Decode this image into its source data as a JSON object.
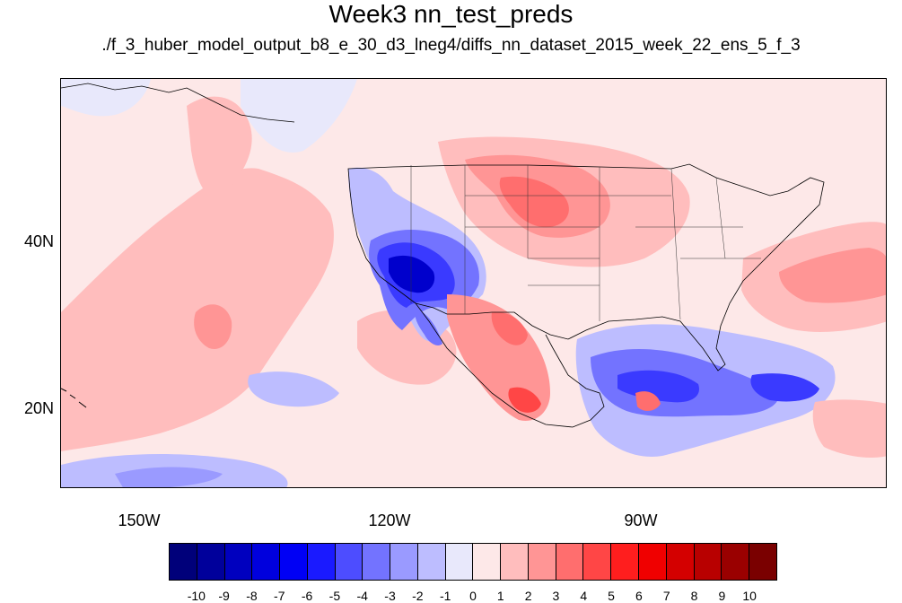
{
  "title": "Week3 nn_test_preds",
  "subtitle": "./f_3_huber_model_output_b8_e_30_d3_lneg4/diffs_nn_dataset_2015_week_22_ens_5_f_3",
  "lon_labels": [
    "150W",
    "120W",
    "90W"
  ],
  "lat_labels": [
    "40N",
    "20N"
  ],
  "colorbar": {
    "labels": [
      "-10",
      "-9",
      "-8",
      "-7",
      "-6",
      "-5",
      "-4",
      "-3",
      "-2",
      "-1",
      "0",
      "1",
      "2",
      "3",
      "4",
      "5",
      "6",
      "7",
      "8",
      "9",
      "10"
    ],
    "colors": [
      "#00007a",
      "#00009b",
      "#0000bf",
      "#0000dd",
      "#0000f5",
      "#1a1aff",
      "#4d4dff",
      "#7373ff",
      "#9a9aff",
      "#bdbdff",
      "#e8e8fb",
      "#fde8e8",
      "#ffbdbd",
      "#ff9595",
      "#ff6e6e",
      "#ff4646",
      "#ff1e1e",
      "#f00000",
      "#d40000",
      "#b80000",
      "#9a0000",
      "#7a0000"
    ]
  },
  "colors": {
    "background": "#fde8e8",
    "light_red": "#ffbdbd",
    "medium_red": "#ff9595",
    "red": "#ff6e6e",
    "deep_red": "#ff2a2a",
    "light_blue": "#bdbdff",
    "pale_blue": "#e8e8fb",
    "medium_blue": "#7373ff",
    "blue": "#3a3aff",
    "deep_blue": "#0000cc"
  }
}
